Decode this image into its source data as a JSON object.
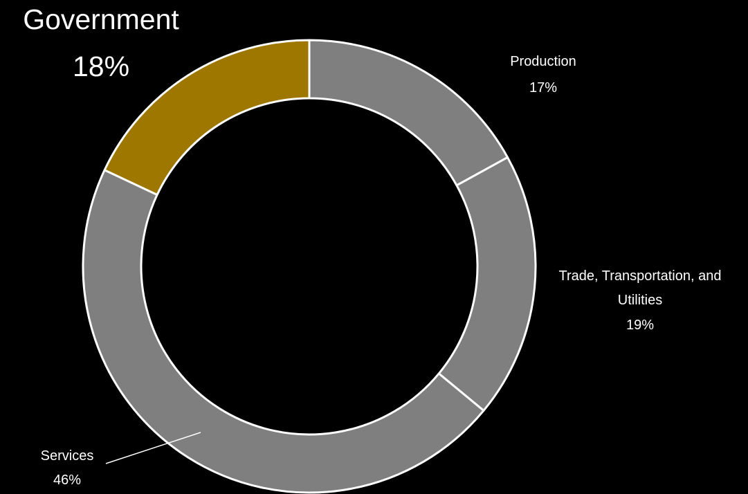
{
  "chart_data": {
    "type": "pie",
    "variant": "donut",
    "title": "",
    "slices": [
      {
        "name": "Production",
        "value": 17,
        "value_label": "17%",
        "color": "#7f7f7f"
      },
      {
        "name": "Trade, Transportation, and Utilities",
        "name_lines": [
          "Trade, Transportation, and",
          "Utilities"
        ],
        "value": 19,
        "value_label": "19%",
        "color": "#7f7f7f"
      },
      {
        "name": "Services",
        "value": 46,
        "value_label": "46%",
        "color": "#7f7f7f"
      },
      {
        "name": "Government",
        "value": 18,
        "value_label": "18%",
        "color": "#9e7700"
      }
    ],
    "separator_color": "#ffffff",
    "background_color": "#000000",
    "legend": "none"
  }
}
